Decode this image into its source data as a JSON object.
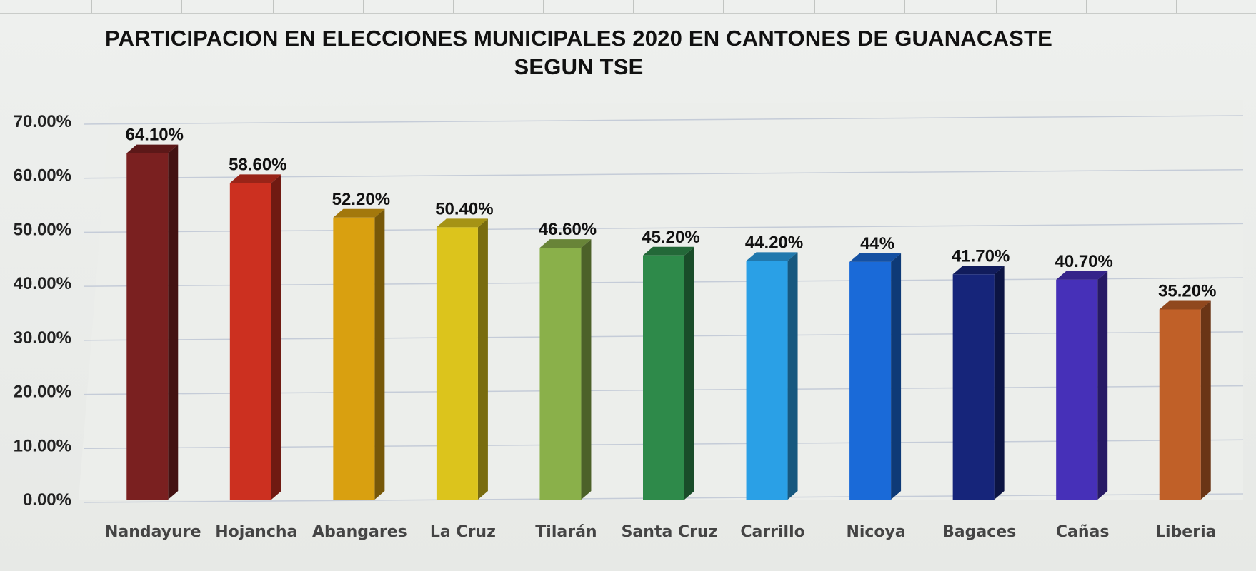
{
  "chart_data": {
    "type": "bar",
    "title": "PARTICIPACION EN ELECCIONES MUNICIPALES 2020 EN CANTONES DE GUANACASTE",
    "subtitle": "SEGUN TSE",
    "categories": [
      "Nandayure",
      "Hojancha",
      "Abangares",
      "La Cruz",
      "Tilarán",
      "Santa Cruz",
      "Carrillo",
      "Nicoya",
      "Bagaces",
      "Cañas",
      "Liberia"
    ],
    "values": [
      64.1,
      58.6,
      52.2,
      50.4,
      46.6,
      45.2,
      44.2,
      44.0,
      41.7,
      40.7,
      35.2
    ],
    "data_labels": [
      "64.10%",
      "58.60%",
      "52.20%",
      "50.40%",
      "46.60%",
      "45.20%",
      "44.20%",
      "44%",
      "41.70%",
      "40.70%",
      "35.20%"
    ],
    "y_ticks": [
      "0.00%",
      "10.00%",
      "20.00%",
      "30.00%",
      "40.00%",
      "50.00%",
      "60.00%",
      "70.00%"
    ],
    "ylim": [
      0,
      70
    ],
    "xlabel": "",
    "ylabel": "",
    "grid": true,
    "style": "3d-bars",
    "bar_colors": [
      "#7a2020",
      "#cc3020",
      "#d9a010",
      "#dcc41c",
      "#8ab04a",
      "#2e8a4a",
      "#2aa0e6",
      "#1a6ad8",
      "#16257a",
      "#4630b8",
      "#c06028"
    ]
  }
}
